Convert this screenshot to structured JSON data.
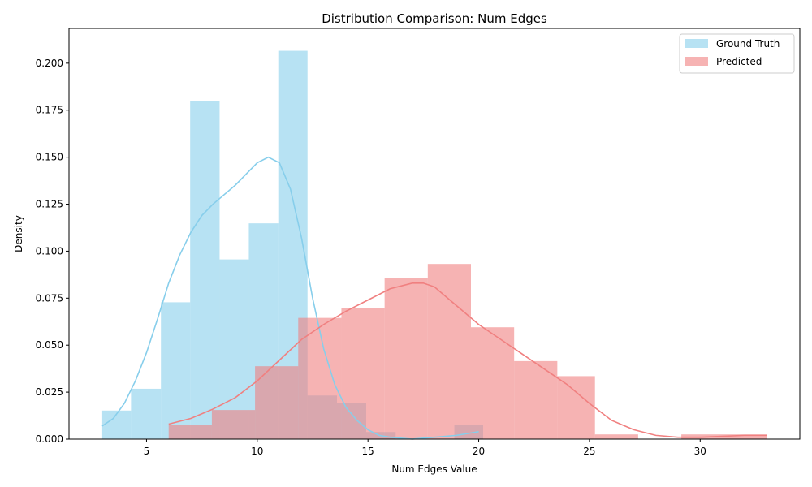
{
  "chart_data": {
    "type": "bar",
    "title": "Distribution Comparison: Num Edges",
    "xlabel": "Num Edges Value",
    "ylabel": "Density",
    "xlim": [
      1.5,
      34.5
    ],
    "ylim": [
      0,
      0.2185
    ],
    "xticks": [
      5,
      10,
      15,
      20,
      25,
      30
    ],
    "yticks": [
      0.0,
      0.025,
      0.05,
      0.075,
      0.1,
      0.125,
      0.15,
      0.175,
      0.2
    ],
    "ytick_labels": [
      "0.000",
      "0.025",
      "0.050",
      "0.075",
      "0.100",
      "0.125",
      "0.150",
      "0.175",
      "0.200"
    ],
    "legend_position": "top-right",
    "grid": false,
    "series": [
      {
        "name": "Ground Truth",
        "color": "#87ceeb",
        "bins": [
          {
            "x0": 3.0,
            "x1": 4.3,
            "density": 0.0152
          },
          {
            "x0": 4.3,
            "x1": 5.65,
            "density": 0.0268
          },
          {
            "x0": 5.65,
            "x1": 6.97,
            "density": 0.0728
          },
          {
            "x0": 6.97,
            "x1": 8.3,
            "density": 0.1797
          },
          {
            "x0": 8.3,
            "x1": 9.62,
            "density": 0.0956
          },
          {
            "x0": 9.62,
            "x1": 10.95,
            "density": 0.1148
          },
          {
            "x0": 10.95,
            "x1": 12.27,
            "density": 0.2066
          },
          {
            "x0": 12.27,
            "x1": 13.6,
            "density": 0.0232
          },
          {
            "x0": 13.6,
            "x1": 14.92,
            "density": 0.0192
          },
          {
            "x0": 14.92,
            "x1": 16.25,
            "density": 0.0038
          },
          {
            "x0": 16.25,
            "x1": 17.57,
            "density": 0.0
          },
          {
            "x0": 17.57,
            "x1": 18.9,
            "density": 0.0
          },
          {
            "x0": 18.9,
            "x1": 20.2,
            "density": 0.0075
          }
        ],
        "kde": [
          [
            3.0,
            0.007
          ],
          [
            3.5,
            0.011
          ],
          [
            4.0,
            0.019
          ],
          [
            4.5,
            0.031
          ],
          [
            5.0,
            0.046
          ],
          [
            5.5,
            0.064
          ],
          [
            6.0,
            0.083
          ],
          [
            6.5,
            0.098
          ],
          [
            7.0,
            0.11
          ],
          [
            7.5,
            0.119
          ],
          [
            8.0,
            0.125
          ],
          [
            8.5,
            0.13
          ],
          [
            9.0,
            0.135
          ],
          [
            9.5,
            0.141
          ],
          [
            10.0,
            0.147
          ],
          [
            10.5,
            0.15
          ],
          [
            11.0,
            0.147
          ],
          [
            11.5,
            0.133
          ],
          [
            12.0,
            0.107
          ],
          [
            12.5,
            0.075
          ],
          [
            13.0,
            0.048
          ],
          [
            13.5,
            0.029
          ],
          [
            14.0,
            0.017
          ],
          [
            14.5,
            0.01
          ],
          [
            15.0,
            0.005
          ],
          [
            15.5,
            0.002
          ],
          [
            16.0,
            0.001
          ],
          [
            17.0,
            0.0
          ],
          [
            18.0,
            0.001
          ],
          [
            19.0,
            0.002
          ],
          [
            20.0,
            0.004
          ]
        ]
      },
      {
        "name": "Predicted",
        "color": "#f08080",
        "bins": [
          {
            "x0": 6.0,
            "x1": 7.95,
            "density": 0.0075
          },
          {
            "x0": 7.95,
            "x1": 9.9,
            "density": 0.0155
          },
          {
            "x0": 9.9,
            "x1": 11.85,
            "density": 0.0388
          },
          {
            "x0": 11.85,
            "x1": 13.8,
            "density": 0.0645
          },
          {
            "x0": 13.8,
            "x1": 15.75,
            "density": 0.0698
          },
          {
            "x0": 15.75,
            "x1": 17.7,
            "density": 0.0855
          },
          {
            "x0": 17.7,
            "x1": 19.65,
            "density": 0.0932
          },
          {
            "x0": 19.65,
            "x1": 21.6,
            "density": 0.0595
          },
          {
            "x0": 21.6,
            "x1": 23.55,
            "density": 0.0415
          },
          {
            "x0": 23.55,
            "x1": 25.25,
            "density": 0.0335
          },
          {
            "x0": 25.25,
            "x1": 27.2,
            "density": 0.0025
          },
          {
            "x0": 27.2,
            "x1": 29.15,
            "density": 0.0
          },
          {
            "x0": 29.15,
            "x1": 33.0,
            "density": 0.0025
          }
        ],
        "kde": [
          [
            6.0,
            0.008
          ],
          [
            7.0,
            0.011
          ],
          [
            8.0,
            0.016
          ],
          [
            9.0,
            0.022
          ],
          [
            10.0,
            0.031
          ],
          [
            11.0,
            0.042
          ],
          [
            12.0,
            0.053
          ],
          [
            13.0,
            0.061
          ],
          [
            14.0,
            0.068
          ],
          [
            15.0,
            0.074
          ],
          [
            16.0,
            0.08
          ],
          [
            17.0,
            0.083
          ],
          [
            17.5,
            0.083
          ],
          [
            18.0,
            0.081
          ],
          [
            19.0,
            0.071
          ],
          [
            20.0,
            0.061
          ],
          [
            21.0,
            0.053
          ],
          [
            22.0,
            0.045
          ],
          [
            23.0,
            0.037
          ],
          [
            24.0,
            0.029
          ],
          [
            25.0,
            0.019
          ],
          [
            26.0,
            0.01
          ],
          [
            27.0,
            0.005
          ],
          [
            28.0,
            0.002
          ],
          [
            29.0,
            0.001
          ],
          [
            30.0,
            0.001
          ],
          [
            31.0,
            0.0015
          ],
          [
            32.0,
            0.002
          ],
          [
            33.0,
            0.002
          ]
        ]
      }
    ]
  }
}
